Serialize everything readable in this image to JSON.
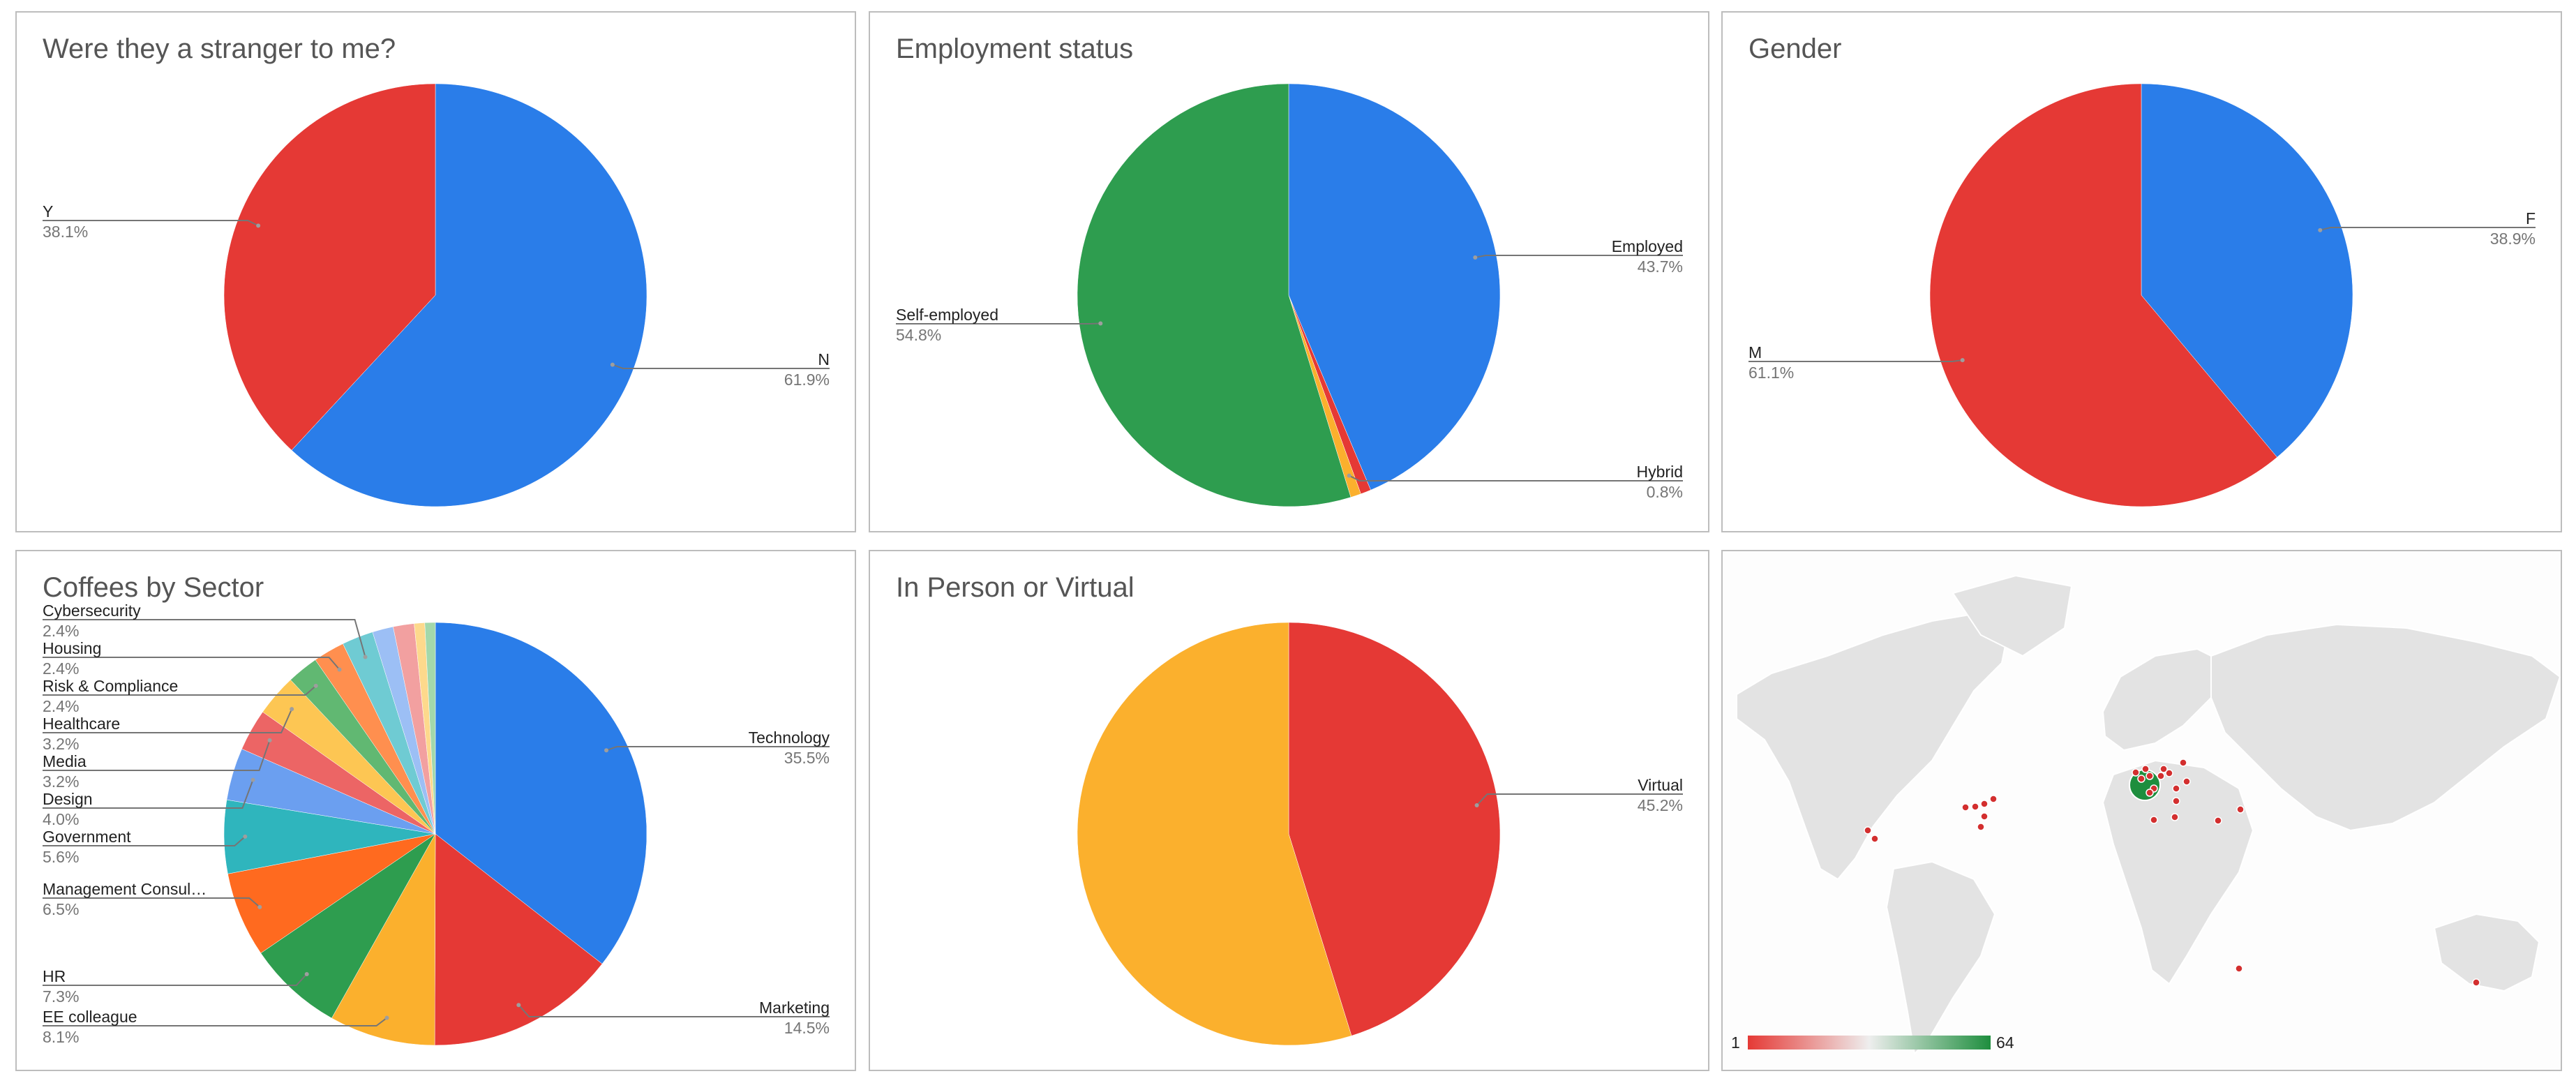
{
  "chart_data": [
    {
      "type": "pie",
      "title": "Were they a stranger to me?",
      "slices": [
        {
          "label": "N",
          "value": 61.9,
          "pct": "61.9%",
          "color": "#2a7de9"
        },
        {
          "label": "Y",
          "value": 38.1,
          "pct": "38.1%",
          "color": "#e53935"
        }
      ]
    },
    {
      "type": "pie",
      "title": "Employment status",
      "slices": [
        {
          "label": "Employed",
          "value": 43.7,
          "pct": "43.7%",
          "color": "#2a7de9"
        },
        {
          "label": "",
          "value": 0.8,
          "pct": "",
          "color": "#e53935"
        },
        {
          "label": "Hybrid",
          "value": 0.8,
          "pct": "0.8%",
          "color": "#fbb02d"
        },
        {
          "label": "Self-employed",
          "value": 54.8,
          "pct": "54.8%",
          "color": "#2e9d4f"
        }
      ]
    },
    {
      "type": "pie",
      "title": "Gender",
      "slices": [
        {
          "label": "F",
          "value": 38.9,
          "pct": "38.9%",
          "color": "#2a7de9"
        },
        {
          "label": "M",
          "value": 61.1,
          "pct": "61.1%",
          "color": "#e53935"
        }
      ]
    },
    {
      "type": "pie",
      "title": "Coffees by Sector",
      "slices": [
        {
          "label": "Technology",
          "value": 35.5,
          "pct": "35.5%",
          "color": "#2a7de9"
        },
        {
          "label": "Marketing",
          "value": 14.5,
          "pct": "14.5%",
          "color": "#e53935"
        },
        {
          "label": "EE colleague",
          "value": 8.1,
          "pct": "8.1%",
          "color": "#fbb02d"
        },
        {
          "label": "HR",
          "value": 7.3,
          "pct": "7.3%",
          "color": "#2e9d4f"
        },
        {
          "label": "Management Consul…",
          "value": 6.5,
          "pct": "6.5%",
          "color": "#ff6a1f"
        },
        {
          "label": "Government",
          "value": 5.6,
          "pct": "5.6%",
          "color": "#2fb5bd"
        },
        {
          "label": "Design",
          "value": 4.0,
          "pct": "4.0%",
          "color": "#6b9ff0"
        },
        {
          "label": "Media",
          "value": 3.2,
          "pct": "3.2%",
          "color": "#ec6565"
        },
        {
          "label": "Healthcare",
          "value": 3.2,
          "pct": "3.2%",
          "color": "#fdc653"
        },
        {
          "label": "Risk & Compliance",
          "value": 2.4,
          "pct": "2.4%",
          "color": "#61b872"
        },
        {
          "label": "Housing",
          "value": 2.4,
          "pct": "2.4%",
          "color": "#ff8f4f"
        },
        {
          "label": "Cybersecurity",
          "value": 2.4,
          "pct": "2.4%",
          "color": "#6fcbd3"
        },
        {
          "label": "",
          "value": 1.6,
          "pct": "",
          "color": "#9cbff5"
        },
        {
          "label": "",
          "value": 1.6,
          "pct": "",
          "color": "#f2a0a0"
        },
        {
          "label": "",
          "value": 0.8,
          "pct": "",
          "color": "#fdd98c"
        },
        {
          "label": "",
          "value": 0.8,
          "pct": "",
          "color": "#a3d8ab"
        }
      ]
    },
    {
      "type": "pie",
      "title": "In Person or Virtual",
      "slices": [
        {
          "label": "Virtual",
          "value": 45.2,
          "pct": "45.2%",
          "color": "#e53935"
        },
        {
          "label": "",
          "value": 54.8,
          "pct": "",
          "color": "#fbb02d"
        }
      ]
    },
    {
      "type": "geo",
      "title": "",
      "color_scale": {
        "min": 1,
        "max": 64,
        "min_label": "1",
        "max_label": "64",
        "colors": [
          "#e53935",
          "#eeeeee",
          "#1e8e3e"
        ]
      }
    }
  ]
}
